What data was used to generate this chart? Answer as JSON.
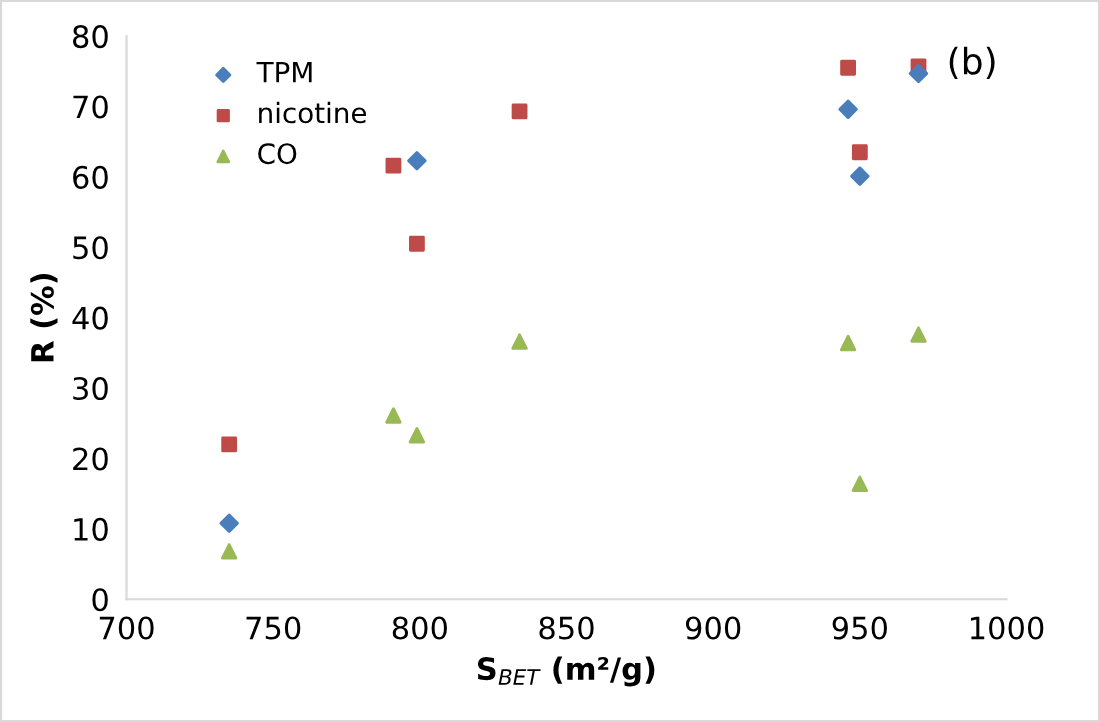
{
  "chart_data": {
    "type": "scatter",
    "xlabel": "S$_{BET}$ (m²/g)",
    "ylabel": "R (%)",
    "xlim": [
      700,
      1000
    ],
    "xticks": [
      700,
      750,
      800,
      850,
      900,
      950,
      1000
    ],
    "ylim": [
      0,
      80
    ],
    "yticks": [
      0,
      10,
      20,
      30,
      40,
      50,
      60,
      70,
      80
    ],
    "grid": false,
    "legend": "top left",
    "annotations": [
      "(b)"
    ],
    "series": [
      {
        "name": "TPM",
        "color": "#4a7ebb",
        "marker": "diamond",
        "x": [
          735,
          799,
          946,
          950,
          970
        ],
        "values": [
          10.8,
          62.3,
          69.6,
          60.1,
          74.7
        ]
      },
      {
        "name": "nicotine",
        "color": "#be4b48",
        "marker": "square",
        "x": [
          735,
          791,
          799,
          834,
          946,
          950,
          970
        ],
        "values": [
          22,
          61.6,
          50.5,
          69.3,
          75.5,
          63.5,
          75.7
        ]
      },
      {
        "name": "CO",
        "color": "#98b954",
        "marker": "triangle",
        "x": [
          735,
          791,
          799,
          834,
          946,
          950,
          970
        ],
        "values": [
          6.8,
          26.1,
          23.3,
          36.6,
          36.4,
          16.4,
          37.6
        ]
      }
    ]
  }
}
